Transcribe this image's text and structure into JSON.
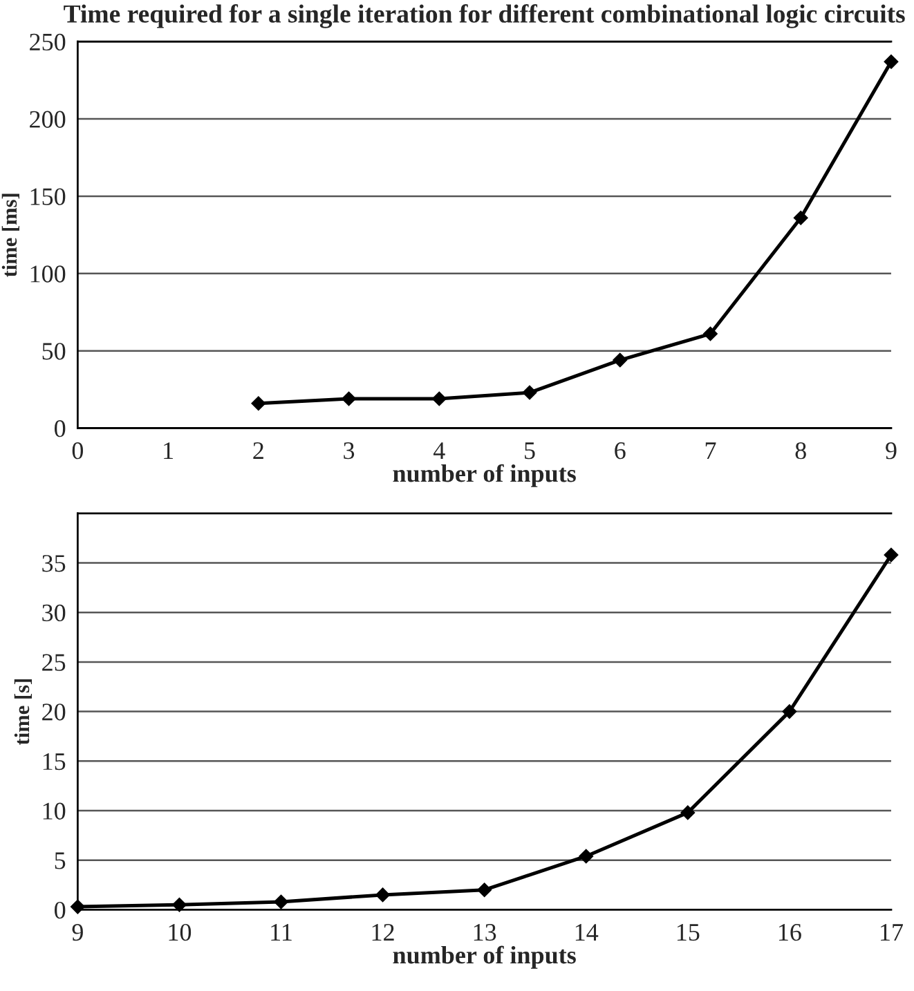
{
  "chart_data": [
    {
      "type": "line",
      "title": "Time required for a single iteration for different combinational logic circuits",
      "xlabel": "number of inputs",
      "ylabel": "time [ms]",
      "x": [
        2,
        3,
        4,
        5,
        6,
        7,
        8,
        9
      ],
      "series": [
        {
          "color": "#000000",
          "values": [
            16,
            19,
            19,
            23,
            44,
            61,
            136,
            237
          ]
        }
      ],
      "xlim": [
        0,
        9
      ],
      "xticks": [
        0,
        1,
        2,
        3,
        4,
        5,
        6,
        7,
        8,
        9
      ],
      "ylim": [
        0,
        250
      ],
      "yticks": [
        0,
        50,
        100,
        150,
        200,
        250
      ],
      "grid": "y",
      "marker": "diamond",
      "line_style": "solid"
    },
    {
      "type": "line",
      "xlabel": "number of inputs",
      "ylabel": "time [s]",
      "x": [
        9,
        10,
        11,
        12,
        13,
        14,
        15,
        16,
        17
      ],
      "series": [
        {
          "color": "#000000",
          "values": [
            0.3,
            0.5,
            0.8,
            1.5,
            2,
            5.4,
            9.8,
            20,
            35.8
          ]
        }
      ],
      "xlim": [
        9,
        17
      ],
      "xticks": [
        9,
        10,
        11,
        12,
        13,
        14,
        15,
        16,
        17
      ],
      "ylim": [
        0,
        40
      ],
      "yticks": [
        0,
        5,
        10,
        15,
        20,
        25,
        30,
        35
      ],
      "grid": "y",
      "marker": "diamond",
      "line_style": "solid"
    }
  ]
}
